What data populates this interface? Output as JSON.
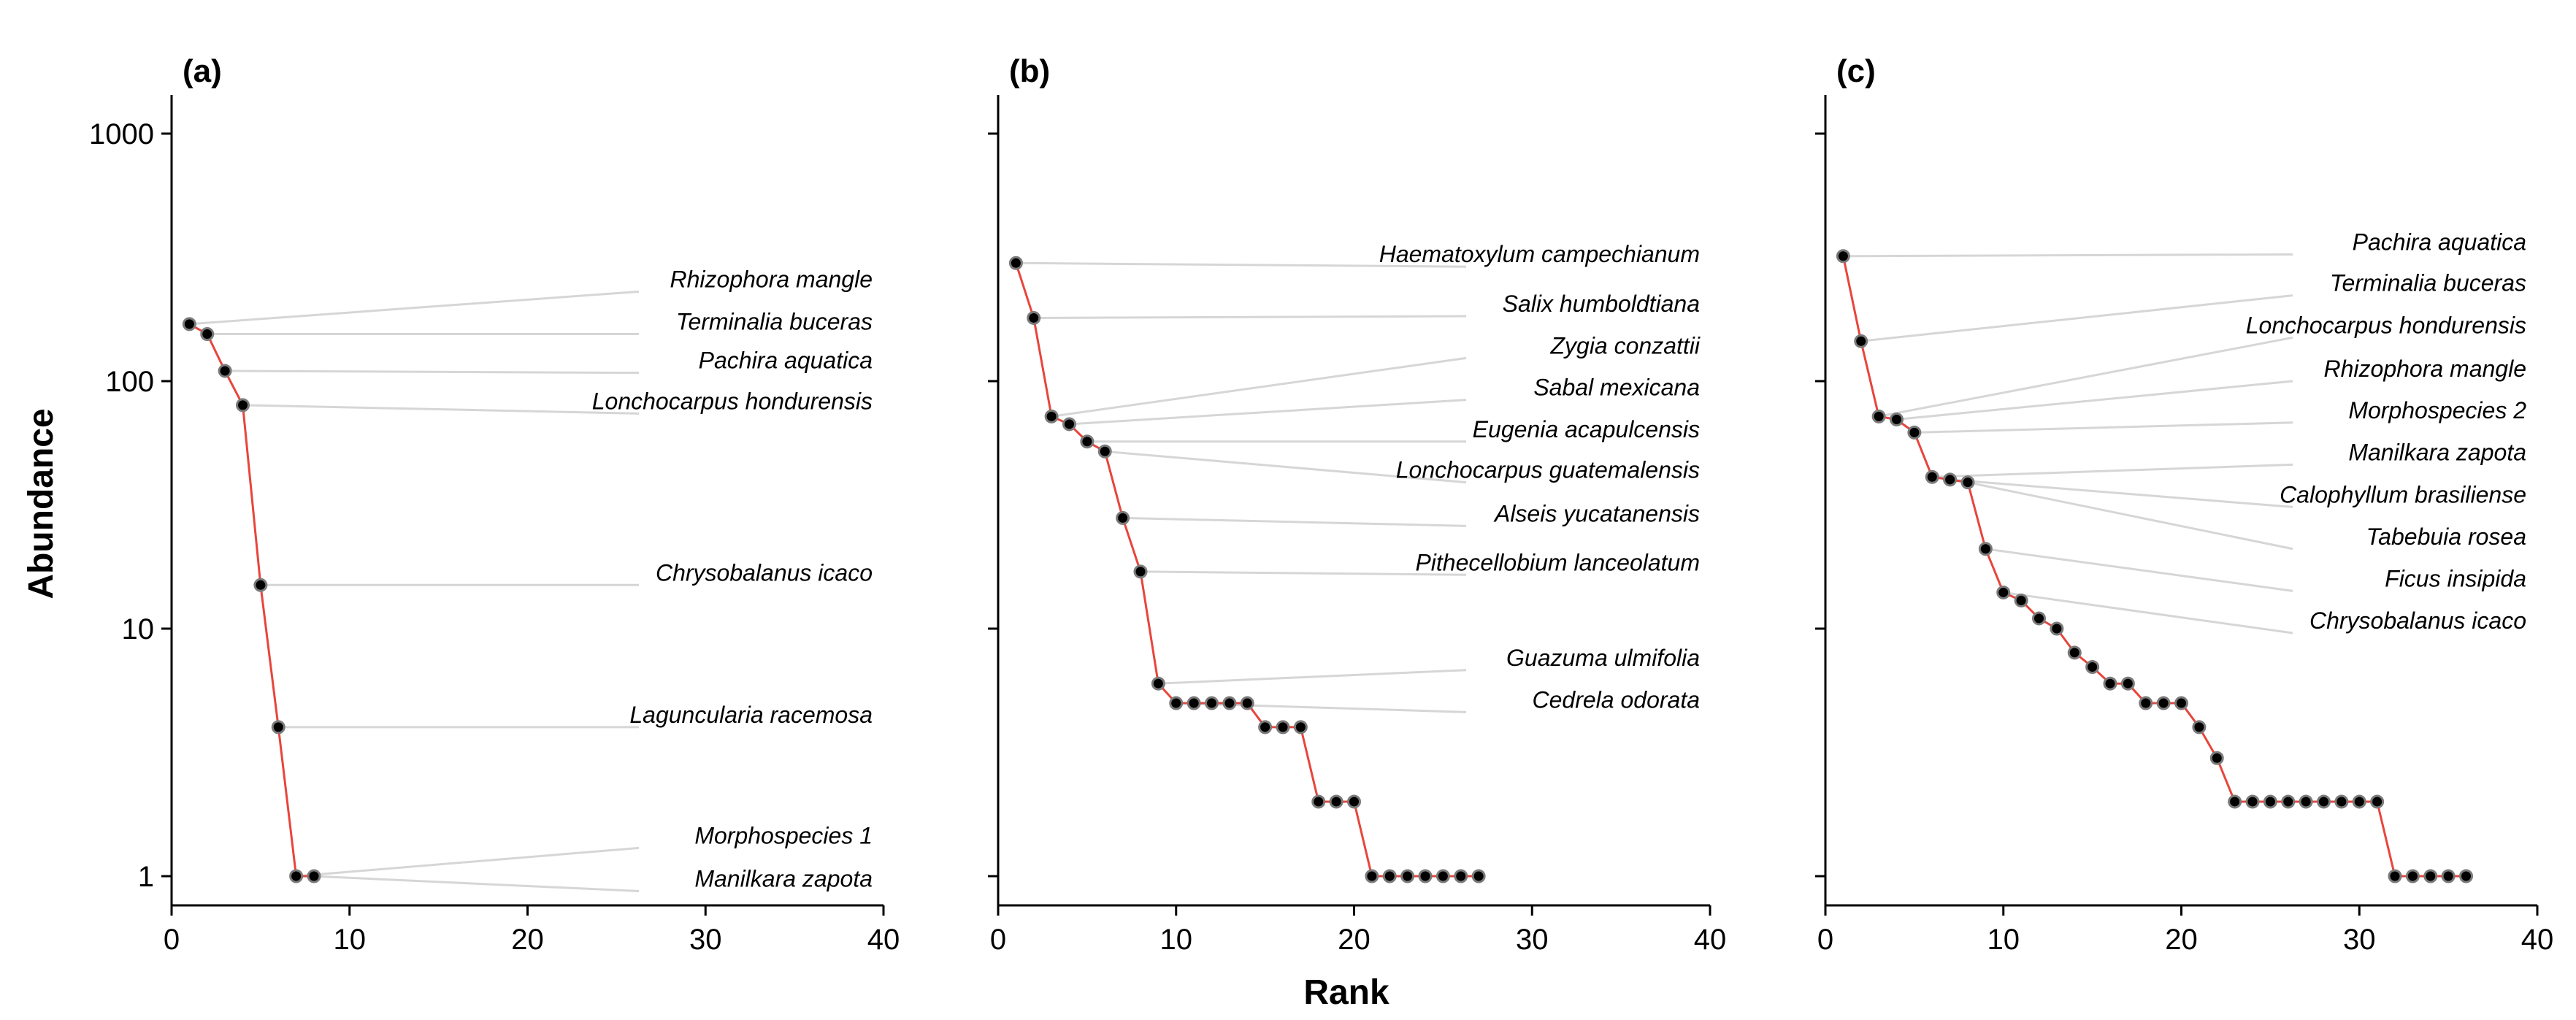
{
  "chart_data": [
    {
      "type": "line",
      "panel": "(a)",
      "xlim": [
        0,
        40
      ],
      "ylim": [
        1,
        1000
      ],
      "yscale": "log",
      "xticks": [
        "0",
        "10",
        "20",
        "30",
        "40"
      ],
      "yticks": [
        "1",
        "10",
        "100",
        "1000"
      ],
      "ylabel": "Abundance",
      "xlabel": "",
      "x": [
        1,
        2,
        3,
        4,
        5,
        6,
        7,
        8
      ],
      "y": [
        170,
        155,
        110,
        80,
        15,
        4,
        1,
        1
      ],
      "labels": [
        {
          "rank": 1,
          "text": "Rhizophora mangle",
          "label_y": 230
        },
        {
          "rank": 2,
          "text": "Terminalia buceras",
          "label_y": 155
        },
        {
          "rank": 3,
          "text": "Pachira aquatica",
          "label_y": 108
        },
        {
          "rank": 4,
          "text": "Lonchocarpus hondurensis",
          "label_y": 74
        },
        {
          "rank": 5,
          "text": "Chrysobalanus icaco",
          "label_y": 15
        },
        {
          "rank": 6,
          "text": "Laguncularia racemosa",
          "label_y": 4
        },
        {
          "rank": 7,
          "text": "Morphospecies 1",
          "label_y": 1.3
        },
        {
          "rank": 8,
          "text": "Manilkara zapota",
          "label_y": 0.87
        }
      ]
    },
    {
      "type": "line",
      "panel": "(b)",
      "xlim": [
        0,
        40
      ],
      "ylim": [
        1,
        1000
      ],
      "yscale": "log",
      "xticks": [
        "0",
        "10",
        "20",
        "30",
        "40"
      ],
      "yticks": [
        "1",
        "10",
        "100",
        "1000"
      ],
      "xlabel": "Rank",
      "ylabel": "",
      "x": [
        1,
        2,
        3,
        4,
        5,
        6,
        7,
        8,
        9,
        10,
        11,
        12,
        13,
        14,
        15,
        16,
        17,
        18,
        19,
        20,
        21,
        22,
        23,
        24,
        25,
        26,
        27
      ],
      "y": [
        300,
        180,
        72,
        67,
        57,
        52,
        28,
        17,
        6,
        5,
        5,
        5,
        5,
        5,
        4,
        4,
        4,
        2,
        2,
        2,
        1,
        1,
        1,
        1,
        1,
        1,
        1
      ],
      "labels": [
        {
          "rank": 1,
          "text": "Haematoxylum campechianum",
          "label_y": 290
        },
        {
          "rank": 2,
          "text": "Salix humboldtiana",
          "label_y": 183
        },
        {
          "rank": 3,
          "text": "Zygia conzattii",
          "label_y": 124
        },
        {
          "rank": 4,
          "text": "Sabal mexicana",
          "label_y": 84
        },
        {
          "rank": 5,
          "text": "Eugenia acapulcensis",
          "label_y": 57
        },
        {
          "rank": 6,
          "text": "Lonchocarpus guatemalensis",
          "label_y": 39
        },
        {
          "rank": 7,
          "text": "Alseis yucatanensis",
          "label_y": 26
        },
        {
          "rank": 8,
          "text": "Pithecellobium lanceolatum",
          "label_y": 16.5
        },
        {
          "rank": 9,
          "text": "Guazuma ulmifolia",
          "label_y": 6.8
        },
        {
          "rank": 10,
          "text": "Cedrela odorata",
          "label_y": 4.6
        }
      ]
    },
    {
      "type": "line",
      "panel": "(c)",
      "xlim": [
        0,
        40
      ],
      "ylim": [
        1,
        1000
      ],
      "yscale": "log",
      "xticks": [
        "0",
        "10",
        "20",
        "30",
        "40"
      ],
      "yticks": [
        "1",
        "10",
        "100",
        "1000"
      ],
      "xlabel": "",
      "ylabel": "",
      "x": [
        1,
        2,
        3,
        4,
        5,
        6,
        7,
        8,
        9,
        10,
        11,
        12,
        13,
        14,
        15,
        16,
        17,
        18,
        19,
        20,
        21,
        22,
        23,
        24,
        25,
        26,
        27,
        28,
        29,
        30,
        31,
        32,
        33,
        34,
        35,
        36
      ],
      "y": [
        320,
        145,
        72,
        70,
        62,
        41,
        40,
        39,
        21,
        14,
        13,
        11,
        10,
        8,
        7,
        6,
        6,
        5,
        5,
        5,
        4,
        3,
        2,
        2,
        2,
        2,
        2,
        2,
        2,
        2,
        2,
        1,
        1,
        1,
        1,
        1
      ],
      "labels": [
        {
          "rank": 1,
          "text": "Pachira aquatica",
          "label_y": 325
        },
        {
          "rank": 2,
          "text": "Terminalia buceras",
          "label_y": 222
        },
        {
          "rank": 3,
          "text": "Lonchocarpus hondurensis",
          "label_y": 150
        },
        {
          "rank": 4,
          "text": "Rhizophora mangle",
          "label_y": 100
        },
        {
          "rank": 5,
          "text": "Morphospecies 2",
          "label_y": 68
        },
        {
          "rank": 6,
          "text": "Manilkara zapota",
          "label_y": 46
        },
        {
          "rank": 7,
          "text": "Calophyllum brasiliense",
          "label_y": 31
        },
        {
          "rank": 8,
          "text": "Tabebuia rosea",
          "label_y": 21
        },
        {
          "rank": 9,
          "text": "Ficus insipida",
          "label_y": 14.2
        },
        {
          "rank": 10,
          "text": "Chrysobalanus icaco",
          "label_y": 9.6
        }
      ]
    }
  ]
}
